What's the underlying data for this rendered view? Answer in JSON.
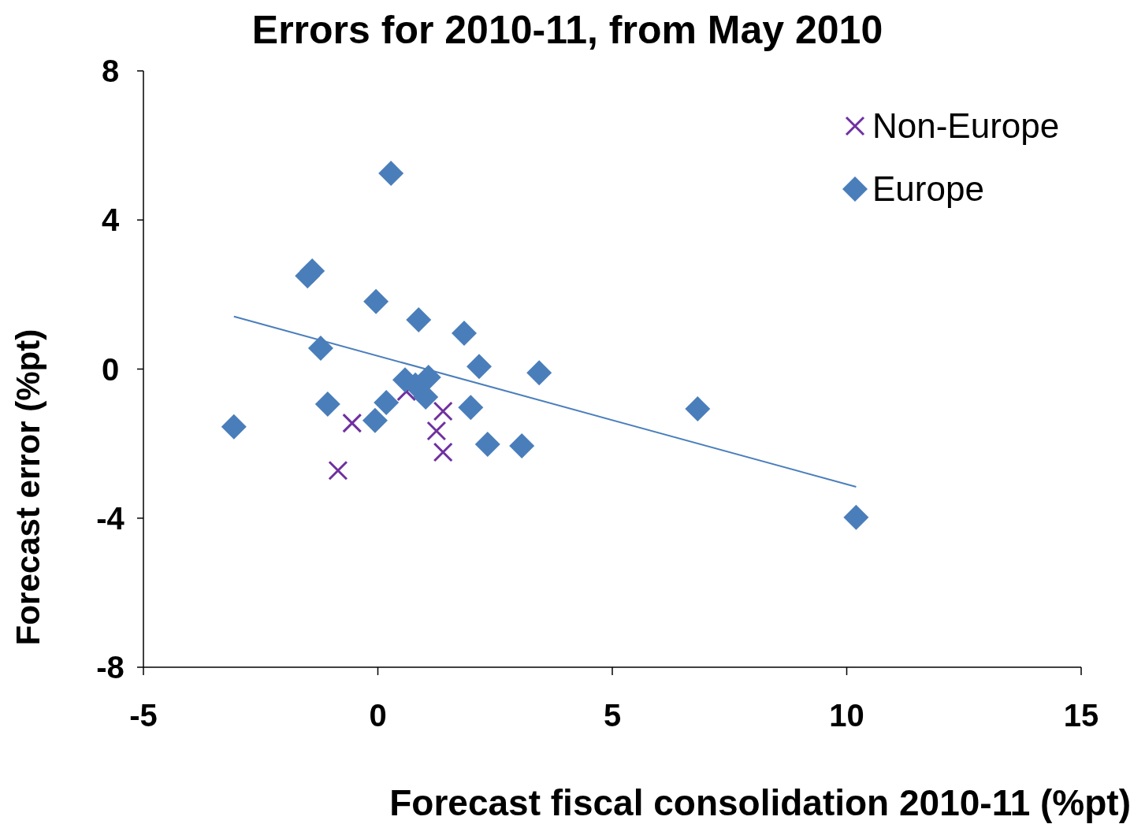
{
  "chart_data": {
    "type": "scatter",
    "title": "Errors for 2010-11, from May 2010",
    "xlabel": "Forecast fiscal consolidation 2010-11 (%pt)",
    "ylabel": "Forecast error (%pt)",
    "xlim": [
      -5,
      15
    ],
    "xticks": [
      -5,
      0,
      5,
      10,
      15
    ],
    "ylim": [
      -8,
      8
    ],
    "yticks": [
      -8,
      -4,
      0,
      4,
      8
    ],
    "grid": false,
    "legend": "top right",
    "series": [
      {
        "name": "Non-Europe",
        "color": "#7030a0",
        "marker": "cross",
        "x": [
          -0.55,
          -0.85,
          1.39,
          1.25,
          1.39,
          0.61
        ],
        "values": [
          -1.45,
          -2.72,
          -1.13,
          -1.66,
          -2.23,
          -0.6
        ]
      },
      {
        "name": "Europe",
        "color": "#4a7ebb",
        "marker": "diamond",
        "x": [
          -3.07,
          -1.5,
          -1.4,
          0.28,
          -0.04,
          -1.22,
          0.87,
          1.84,
          2.16,
          3.44,
          -1.07,
          0.18,
          -0.06,
          0.58,
          1.08,
          1.02,
          0.8,
          1.98,
          2.34,
          3.07,
          6.82,
          10.2
        ],
        "values": [
          -1.55,
          2.5,
          2.63,
          5.25,
          1.81,
          0.56,
          1.32,
          0.96,
          0.07,
          -0.1,
          -0.94,
          -0.9,
          -1.38,
          -0.29,
          -0.22,
          -0.75,
          -0.43,
          -1.03,
          -2.02,
          -2.06,
          -1.07,
          -3.98
        ]
      },
      {
        "type": "line",
        "color": "#4a7ebb",
        "marker": "none",
        "x": [
          -3.07,
          10.2
        ],
        "values": [
          1.41,
          -3.16
        ]
      }
    ]
  }
}
